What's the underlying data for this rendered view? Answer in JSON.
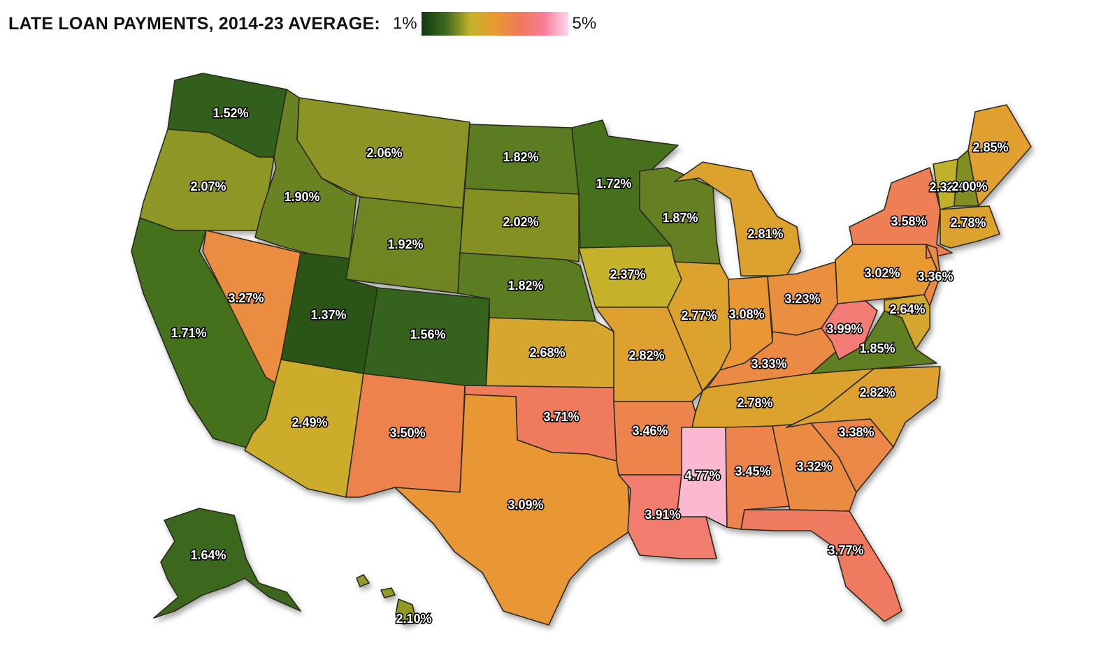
{
  "legend": {
    "title": "LATE LOAN PAYMENTS, 2014-23 AVERAGE:",
    "min_label": "1%",
    "max_label": "5%",
    "min_value": 1,
    "max_value": 5,
    "color_stops": [
      "#123a12",
      "#3c6a1e",
      "#c3b22a",
      "#e89a30",
      "#ef7a58",
      "#f77d95",
      "#ffd6f0"
    ]
  },
  "states": [
    {
      "id": "WA",
      "value": 1.52,
      "label": "1.52%"
    },
    {
      "id": "OR",
      "value": 2.07,
      "label": "2.07%"
    },
    {
      "id": "CA",
      "value": 1.71,
      "label": "1.71%"
    },
    {
      "id": "ID",
      "value": 1.9,
      "label": "1.90%"
    },
    {
      "id": "NV",
      "value": 3.27,
      "label": "3.27%"
    },
    {
      "id": "MT",
      "value": 2.06,
      "label": "2.06%"
    },
    {
      "id": "WY",
      "value": 1.92,
      "label": "1.92%"
    },
    {
      "id": "UT",
      "value": 1.37,
      "label": "1.37%"
    },
    {
      "id": "AZ",
      "value": 2.49,
      "label": "2.49%"
    },
    {
      "id": "CO",
      "value": 1.56,
      "label": "1.56%"
    },
    {
      "id": "NM",
      "value": 3.5,
      "label": "3.50%"
    },
    {
      "id": "ND",
      "value": 1.82,
      "label": "1.82%"
    },
    {
      "id": "SD",
      "value": 2.02,
      "label": "2.02%"
    },
    {
      "id": "NE",
      "value": 1.82,
      "label": "1.82%"
    },
    {
      "id": "KS",
      "value": 2.68,
      "label": "2.68%"
    },
    {
      "id": "OK",
      "value": 3.71,
      "label": "3.71%"
    },
    {
      "id": "TX",
      "value": 3.09,
      "label": "3.09%"
    },
    {
      "id": "MN",
      "value": 1.72,
      "label": "1.72%"
    },
    {
      "id": "IA",
      "value": 2.37,
      "label": "2.37%"
    },
    {
      "id": "MO",
      "value": 2.82,
      "label": "2.82%"
    },
    {
      "id": "AR",
      "value": 3.46,
      "label": "3.46%"
    },
    {
      "id": "LA",
      "value": 3.91,
      "label": "3.91%"
    },
    {
      "id": "WI",
      "value": 1.87,
      "label": "1.87%"
    },
    {
      "id": "IL",
      "value": 2.77,
      "label": "2.77%"
    },
    {
      "id": "MI",
      "value": 2.81,
      "label": "2.81%"
    },
    {
      "id": "IN",
      "value": 3.08,
      "label": "3.08%"
    },
    {
      "id": "OH",
      "value": 3.23,
      "label": "3.23%"
    },
    {
      "id": "KY",
      "value": 3.33,
      "label": "3.33%"
    },
    {
      "id": "TN",
      "value": 2.78,
      "label": "2.78%"
    },
    {
      "id": "MS",
      "value": 4.77,
      "label": "4.77%"
    },
    {
      "id": "AL",
      "value": 3.45,
      "label": "3.45%"
    },
    {
      "id": "GA",
      "value": 3.32,
      "label": "3.32%"
    },
    {
      "id": "FL",
      "value": 3.77,
      "label": "3.77%"
    },
    {
      "id": "SC",
      "value": 3.38,
      "label": "3.38%"
    },
    {
      "id": "NC",
      "value": 2.82,
      "label": "2.82%"
    },
    {
      "id": "VA",
      "value": 1.85,
      "label": "1.85%"
    },
    {
      "id": "WV",
      "value": 3.99,
      "label": "3.99%"
    },
    {
      "id": "PA",
      "value": 3.02,
      "label": "3.02%"
    },
    {
      "id": "NY",
      "value": 3.58,
      "label": "3.58%"
    },
    {
      "id": "NJ",
      "value": 3.36,
      "label": "3.36%"
    },
    {
      "id": "MD",
      "value": 2.64,
      "label": "2.64%"
    },
    {
      "id": "VT",
      "value": 2.32,
      "label": "2.32%"
    },
    {
      "id": "NH",
      "value": 2.0,
      "label": "2.00%"
    },
    {
      "id": "CT",
      "value": 2.78,
      "label": "2.78%"
    },
    {
      "id": "ME",
      "value": 2.85,
      "label": "2.85%"
    },
    {
      "id": "AK",
      "value": 1.64,
      "label": "1.64%"
    },
    {
      "id": "HI",
      "value": 2.1,
      "label": "2.10%"
    }
  ]
}
